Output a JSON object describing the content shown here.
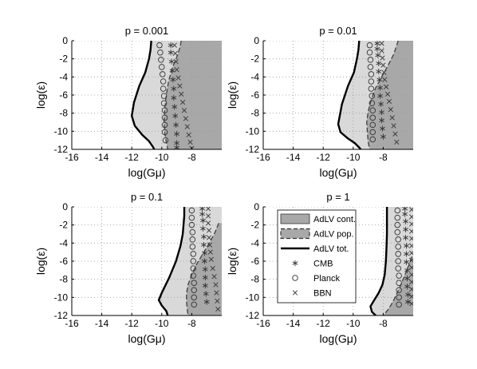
{
  "chart_data": [
    {
      "type": "area",
      "title": "p = 0.001",
      "xlabel": "log(Gμ)",
      "ylabel": "log(ε)",
      "xlim": [
        -16,
        -6
      ],
      "ylim": [
        -12,
        0
      ],
      "xticks": [
        "-16",
        "-14",
        "-12",
        "-10",
        "-8"
      ],
      "yticks": [
        "0",
        "-2",
        "-4",
        "-6",
        "-8",
        "-10",
        "-12"
      ],
      "grid": true,
      "series": [
        {
          "name": "AdLV tot.",
          "x": [
            -10.7,
            -10.75,
            -10.85,
            -11.1,
            -11.5,
            -11.85,
            -12.0,
            -11.8,
            -11.3,
            -10.85,
            -10.6,
            -10.5
          ],
          "y": [
            0,
            -1,
            -2,
            -3.5,
            -5,
            -6.8,
            -8.3,
            -9.4,
            -10.4,
            -11.1,
            -11.7,
            -12
          ]
        },
        {
          "name": "AdLV pop.",
          "x": [
            -8.7,
            -8.8,
            -9.0,
            -9.3,
            -9.55,
            -9.7,
            -9.8,
            -9.85,
            -9.8,
            -9.7,
            -9.6
          ],
          "y": [
            0,
            -0.8,
            -1.8,
            -3.0,
            -4.5,
            -6.0,
            -7.5,
            -9.0,
            -10.2,
            -11.2,
            -12
          ]
        },
        {
          "name": "CMB",
          "x": [
            -9.4,
            -9.4,
            -9.35,
            -9.3,
            -9.25,
            -9.2,
            -9.2,
            -9.15,
            -9.1,
            -9.05,
            -9.0,
            -9.0,
            -9.0
          ],
          "y": [
            -0.5,
            -1.3,
            -2.3,
            -3.3,
            -4.3,
            -5.3,
            -6.3,
            -7.3,
            -8.3,
            -9.3,
            -10.3,
            -11.3,
            -11.8
          ]
        },
        {
          "name": "Planck",
          "x": [
            -10.15,
            -10.1,
            -10.05,
            -10.0,
            -9.95,
            -9.9,
            -9.9,
            -9.85,
            -9.85,
            -9.8,
            -9.8,
            -9.8,
            -9.8,
            -9.75
          ],
          "y": [
            -0.5,
            -1.3,
            -2.1,
            -2.9,
            -3.7,
            -4.5,
            -5.3,
            -6.1,
            -6.9,
            -7.7,
            -8.5,
            -9.3,
            -10.1,
            -11.0
          ]
        },
        {
          "name": "BBN",
          "x": [
            -9.15,
            -9.1,
            -9.05,
            -9.0,
            -8.9,
            -8.8,
            -8.7,
            -8.6,
            -8.5,
            -8.4,
            -8.3,
            -8.2,
            -8.1,
            -8.0
          ],
          "y": [
            -0.5,
            -1.4,
            -2.3,
            -3.2,
            -4.1,
            -5.0,
            -5.9,
            -6.8,
            -7.7,
            -8.6,
            -9.5,
            -10.4,
            -11.2,
            -11.9
          ]
        }
      ]
    },
    {
      "type": "area",
      "title": "p = 0.01",
      "xlabel": "log(Gμ)",
      "ylabel": "log(ε)",
      "xlim": [
        -16,
        -6
      ],
      "ylim": [
        -12,
        0
      ],
      "xticks": [
        "-16",
        "-14",
        "-12",
        "-10",
        "-8"
      ],
      "yticks": [
        "0",
        "-2",
        "-4",
        "-6",
        "-8",
        "-10",
        "-12"
      ],
      "grid": true,
      "series": [
        {
          "name": "AdLV tot.",
          "x": [
            -9.6,
            -9.65,
            -9.75,
            -9.95,
            -10.35,
            -10.75,
            -11.0,
            -10.85,
            -10.35,
            -9.9,
            -9.6,
            -9.5
          ],
          "y": [
            0,
            -1,
            -2,
            -3.5,
            -5,
            -7,
            -9.2,
            -10.1,
            -10.8,
            -11.3,
            -11.8,
            -12
          ]
        },
        {
          "name": "AdLV pop.",
          "x": [
            -7.0,
            -7.3,
            -7.7,
            -8.1,
            -8.5,
            -8.8,
            -9.0,
            -9.1,
            -9.05,
            -9.0,
            -8.9
          ],
          "y": [
            0,
            -1.5,
            -2.8,
            -4.0,
            -5.2,
            -6.5,
            -7.8,
            -9.0,
            -10.2,
            -11.2,
            -12
          ]
        },
        {
          "name": "CMB",
          "x": [
            -8.4,
            -8.4,
            -8.35,
            -8.3,
            -8.3,
            -8.25,
            -8.2,
            -8.2,
            -8.15,
            -8.1,
            -8.1,
            -8.05,
            -8.0
          ],
          "y": [
            -0.3,
            -0.9,
            -1.6,
            -2.5,
            -3.4,
            -4.3,
            -5.2,
            -6.1,
            -7.0,
            -7.9,
            -8.8,
            -9.7,
            -10.6
          ]
        },
        {
          "name": "Planck",
          "x": [
            -8.9,
            -8.9,
            -8.85,
            -8.85,
            -8.8,
            -8.8,
            -8.8,
            -8.75,
            -8.75,
            -8.7,
            -8.7,
            -8.7,
            -8.7,
            -8.7
          ],
          "y": [
            -0.5,
            -1.3,
            -2.1,
            -2.9,
            -3.7,
            -4.5,
            -5.3,
            -6.1,
            -6.9,
            -7.7,
            -8.5,
            -9.3,
            -10.1,
            -10.9
          ]
        },
        {
          "name": "BBN",
          "x": [
            -8.1,
            -8.1,
            -8.05,
            -8.0,
            -7.95,
            -7.9,
            -7.8,
            -7.7,
            -7.6,
            -7.5,
            -7.4,
            -7.3,
            -7.2,
            -7.1
          ],
          "y": [
            -0.3,
            -1.1,
            -1.9,
            -2.7,
            -3.5,
            -4.3,
            -5.1,
            -5.9,
            -6.7,
            -7.6,
            -8.5,
            -9.4,
            -10.3,
            -11.2
          ]
        }
      ]
    },
    {
      "type": "area",
      "title": "p = 0.1",
      "xlabel": "log(Gμ)",
      "ylabel": "log(ε)",
      "xlim": [
        -16,
        -6
      ],
      "ylim": [
        -12,
        0
      ],
      "xticks": [
        "-16",
        "-14",
        "-12",
        "-10",
        "-8"
      ],
      "yticks": [
        "0",
        "-2",
        "-4",
        "-6",
        "-8",
        "-10",
        "-12"
      ],
      "grid": true,
      "series": [
        {
          "name": "AdLV tot.",
          "x": [
            -8.5,
            -8.5,
            -8.55,
            -8.6,
            -8.75,
            -9.05,
            -9.5,
            -10.0,
            -10.2,
            -10.0,
            -9.7,
            -9.6
          ],
          "y": [
            0,
            -1,
            -2,
            -3,
            -4.3,
            -6,
            -7.8,
            -9.5,
            -10.3,
            -10.9,
            -11.5,
            -12
          ]
        },
        {
          "name": "AdLV pop.",
          "x": [
            -6.2,
            -6.5,
            -6.9,
            -7.3,
            -7.7,
            -8.0,
            -8.25,
            -8.35,
            -8.35,
            -8.3,
            -8.25
          ],
          "y": [
            -1.8,
            -3.0,
            -4.2,
            -5.3,
            -6.4,
            -7.5,
            -8.6,
            -9.6,
            -10.5,
            -11.3,
            -12
          ]
        },
        {
          "name": "CMB",
          "x": [
            -7.3,
            -7.3,
            -7.25,
            -7.25,
            -7.2,
            -7.2,
            -7.15,
            -7.15,
            -7.1,
            -7.1,
            -7.1,
            -7.05,
            -7.0
          ],
          "y": [
            -0.2,
            -0.8,
            -1.5,
            -2.4,
            -3.3,
            -4.2,
            -5.1,
            -6.0,
            -6.9,
            -7.8,
            -8.7,
            -9.6,
            -10.5
          ]
        },
        {
          "name": "Planck",
          "x": [
            -8.0,
            -8.0,
            -8.0,
            -7.95,
            -7.95,
            -7.95,
            -7.9,
            -7.9,
            -7.9,
            -7.9,
            -7.85,
            -7.85,
            -7.85,
            -7.85
          ],
          "y": [
            -0.4,
            -1.2,
            -2.0,
            -2.8,
            -3.6,
            -4.4,
            -5.2,
            -6.0,
            -6.8,
            -7.6,
            -8.4,
            -9.2,
            -10.0,
            -10.8
          ]
        },
        {
          "name": "BBN",
          "x": [
            -6.9,
            -6.9,
            -6.9,
            -6.85,
            -6.85,
            -6.8,
            -6.75,
            -6.7,
            -6.6,
            -6.5,
            -6.4,
            -6.35,
            -6.3,
            -6.25
          ],
          "y": [
            -0.2,
            -1.0,
            -1.8,
            -2.6,
            -3.4,
            -4.2,
            -5.0,
            -5.8,
            -6.8,
            -7.7,
            -8.6,
            -9.5,
            -10.4,
            -11.3
          ]
        }
      ]
    },
    {
      "type": "area",
      "title": "p = 1",
      "xlabel": "log(Gμ)",
      "ylabel": "log(ε)",
      "xlim": [
        -16,
        -6
      ],
      "ylim": [
        -12,
        0
      ],
      "xticks": [
        "-16",
        "-14",
        "-12",
        "-10",
        "-8"
      ],
      "yticks": [
        "0",
        "-2",
        "-4",
        "-6",
        "-8",
        "-10",
        "-12"
      ],
      "grid": true,
      "legend": {
        "placement": "left-center",
        "entries": [
          "AdLV cont.",
          "AdLV pop.",
          "AdLV tot.",
          "CMB",
          "Planck",
          "BBN"
        ]
      },
      "series": [
        {
          "name": "AdLV tot.",
          "x": [
            -7.75,
            -7.75,
            -7.75,
            -7.78,
            -7.82,
            -7.9,
            -8.05,
            -8.3,
            -8.6,
            -8.85,
            -8.75,
            -8.5
          ],
          "y": [
            0,
            -1.5,
            -3,
            -4.5,
            -6,
            -7.5,
            -8.6,
            -9.5,
            -10.3,
            -11.0,
            -11.6,
            -12
          ]
        },
        {
          "name": "AdLV pop.",
          "x": [
            -6.1,
            -6.3,
            -6.5,
            -6.7,
            -6.9,
            -7.1,
            -7.3,
            -7.5,
            -7.7,
            -7.9,
            -8.0
          ],
          "y": [
            -5.5,
            -6.5,
            -7.3,
            -8.1,
            -8.9,
            -9.6,
            -10.3,
            -10.9,
            -11.4,
            -11.8,
            -12
          ]
        },
        {
          "name": "CMB",
          "x": [
            -6.55,
            -6.55,
            -6.5,
            -6.5,
            -6.5,
            -6.45,
            -6.45,
            -6.45,
            -6.4,
            -6.4,
            -6.4,
            -6.35,
            -6.35
          ],
          "y": [
            -0.2,
            -0.8,
            -1.6,
            -2.5,
            -3.4,
            -4.3,
            -5.2,
            -6.1,
            -7.0,
            -7.9,
            -8.8,
            -9.7,
            -10.5
          ]
        },
        {
          "name": "Planck",
          "x": [
            -7.05,
            -7.05,
            -7.05,
            -7.05,
            -7.0,
            -7.0,
            -7.0,
            -7.0,
            -7.0,
            -6.95,
            -6.95,
            -6.95,
            -6.95,
            -6.95
          ],
          "y": [
            -0.4,
            -1.2,
            -2.0,
            -2.8,
            -3.6,
            -4.4,
            -5.2,
            -6.0,
            -6.8,
            -7.6,
            -8.4,
            -9.2,
            -10.0,
            -10.8
          ]
        },
        {
          "name": "BBN",
          "x": [
            -6.1,
            -6.1,
            -6.1,
            -6.1,
            -6.1,
            -6.1,
            -6.1,
            -6.1,
            -6.1,
            -6.1,
            -6.1,
            -6.1,
            -6.1,
            -6.1
          ],
          "y": [
            -0.3,
            -1.1,
            -1.9,
            -2.7,
            -3.5,
            -4.3,
            -5.1,
            -5.9,
            -6.7,
            -7.5,
            -8.3,
            -9.1,
            -9.9,
            -10.7
          ]
        }
      ]
    }
  ]
}
